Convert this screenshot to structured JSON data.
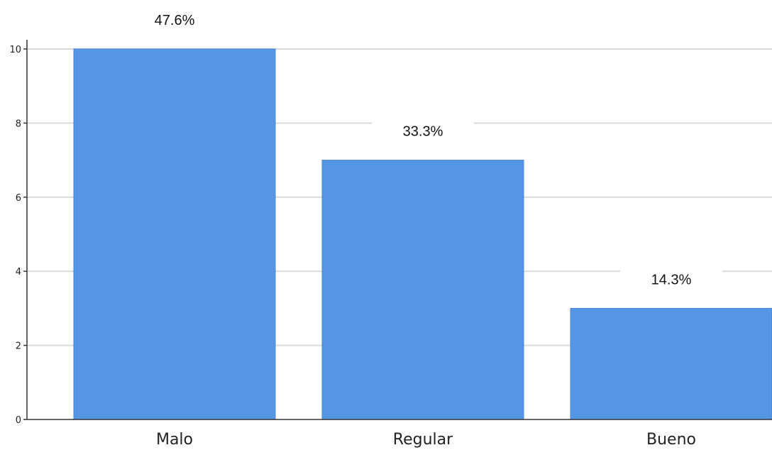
{
  "chart_data": {
    "type": "bar",
    "categories": [
      "Malo",
      "Regular",
      "Bueno"
    ],
    "values": [
      10,
      7,
      3
    ],
    "data_labels": [
      "47.6%",
      "33.3%",
      "14.3%"
    ],
    "y_ticks": [
      "0",
      "2",
      "4",
      "6",
      "8",
      "10"
    ],
    "ylim": [
      0,
      10
    ],
    "grid": true,
    "legend": "none",
    "bar_color": "#5596e4",
    "title": "",
    "xlabel": "",
    "ylabel": ""
  }
}
